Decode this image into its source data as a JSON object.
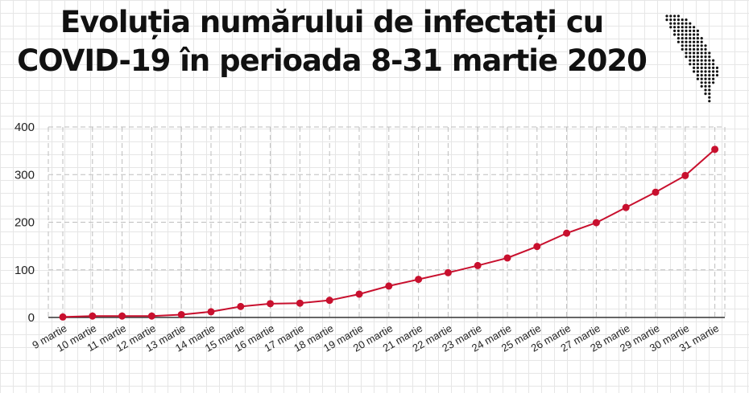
{
  "title": {
    "line1": "Evoluția numărului de infectați cu",
    "line2": "COVID-19 în perioada 8-31 martie 2020"
  },
  "logo_icon": "moldova-map-dots-icon",
  "colors": {
    "line": "#c8102e",
    "grid": "#bdbdbd",
    "axis": "#333333"
  },
  "chart_data": {
    "type": "line",
    "title": "Evoluția numărului de infectați cu COVID-19 în perioada 8-31 martie 2020",
    "xlabel": "",
    "ylabel": "",
    "ylim": [
      0,
      400
    ],
    "yticks": [
      0,
      100,
      200,
      300,
      400
    ],
    "grid": true,
    "categories": [
      "9 martie",
      "10 martie",
      "11 martie",
      "12 martie",
      "13 martie",
      "14 martie",
      "15 martie",
      "16 martie",
      "17 martie",
      "18 martie",
      "19 martie",
      "20 martie",
      "21 martie",
      "22 martie",
      "23 martie",
      "24 martie",
      "25 martie",
      "26 martie",
      "27 martie",
      "28 martie",
      "29 martie",
      "30 martie",
      "31 martie"
    ],
    "series": [
      {
        "values": [
          1,
          3,
          3,
          3,
          6,
          12,
          23,
          29,
          30,
          36,
          49,
          66,
          80,
          94,
          109,
          125,
          149,
          177,
          199,
          231,
          263,
          298,
          353
        ]
      }
    ]
  }
}
